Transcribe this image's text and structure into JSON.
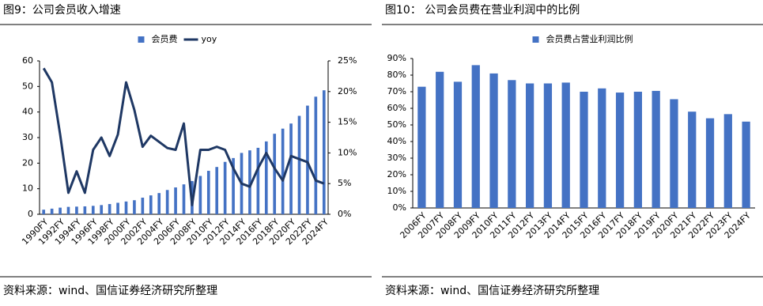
{
  "chart_data": [
    {
      "type": "combo",
      "title": "图9：公司会员收入增速",
      "source": "资料来源：wind、国信证券经济研究所整理",
      "legend": "top",
      "categories": [
        "1990FY",
        null,
        "1992FY",
        null,
        "1994FY",
        null,
        "1996FY",
        null,
        "1998FY",
        null,
        "2000FY",
        null,
        "2002FY",
        null,
        "2004FY",
        null,
        "2006FY",
        null,
        "2008FY",
        null,
        "2010FY",
        null,
        "2012FY",
        null,
        "2014FY",
        null,
        "2016FY",
        null,
        "2018FY",
        null,
        "2020FY",
        null,
        "2022FY",
        null,
        "2024FY"
      ],
      "series": [
        {
          "name": "会员费",
          "type": "bar",
          "color": "#4472c4",
          "values": [
            1.8,
            2.2,
            2.6,
            2.9,
            3.0,
            3.1,
            3.3,
            3.6,
            4.0,
            4.5,
            5.0,
            5.5,
            6.5,
            7.4,
            8.3,
            9.5,
            10.5,
            11.7,
            13.0,
            15.0,
            17.0,
            18.5,
            20.5,
            22.0,
            24.0,
            25.0,
            26.0,
            28.5,
            31.5,
            33.5,
            35.5,
            38.5,
            42.5,
            46.0,
            48.5
          ]
        },
        {
          "name": "yoy",
          "type": "line",
          "axis": "y2",
          "color": "#1f3864",
          "values": [
            23.8,
            21.5,
            13,
            3.5,
            7,
            3.5,
            10.5,
            12.5,
            9.5,
            13,
            21.5,
            17,
            11,
            12.8,
            11.8,
            10.8,
            10.5,
            14.8,
            1.5,
            10.5,
            10.5,
            11,
            10.5,
            7.5,
            5,
            4.5,
            7.5,
            10,
            7.5,
            5.5,
            9.5,
            9,
            8.5,
            5.5,
            5
          ]
        }
      ],
      "ylim": [
        0,
        60
      ],
      "yticks": [
        0,
        10,
        20,
        30,
        40,
        50,
        60
      ],
      "y2lim": [
        0,
        25
      ],
      "y2ticks": [
        {
          "value": 0,
          "label": "0%"
        },
        {
          "value": 5,
          "label": "5%"
        },
        {
          "value": 10,
          "label": "10%"
        },
        {
          "value": 15,
          "label": "15%"
        },
        {
          "value": 20,
          "label": "20%"
        },
        {
          "value": 25,
          "label": "25%"
        }
      ]
    },
    {
      "type": "bar",
      "title": "图10：  公司会员费在营业利润中的比例",
      "source": "资料来源：wind、国信证券经济研究所整理",
      "legend": "top",
      "categories": [
        "2006FY",
        "2007FY",
        "2008FY",
        "2009FY",
        "2010FY",
        "2011FY",
        "2012FY",
        "2013FY",
        "2014FY",
        "2015FY",
        "2016FY",
        "2017FY",
        "2018FY",
        "2019FY",
        "2020FY",
        "2021FY",
        "2022FY",
        "2023FY",
        "2024FY"
      ],
      "series": [
        {
          "name": "会员费占营业利润比例",
          "type": "bar",
          "color": "#4472c4",
          "values": [
            73,
            82,
            76,
            86,
            81,
            77,
            75,
            75,
            75.5,
            70,
            72,
            69.5,
            70,
            70.5,
            65.5,
            58,
            54,
            56.5,
            52
          ]
        }
      ],
      "ylim": [
        0,
        90
      ],
      "yticks": [
        {
          "value": 0,
          "label": "0%"
        },
        {
          "value": 10,
          "label": "10%"
        },
        {
          "value": 20,
          "label": "20%"
        },
        {
          "value": 30,
          "label": "30%"
        },
        {
          "value": 40,
          "label": "40%"
        },
        {
          "value": 50,
          "label": "50%"
        },
        {
          "value": 60,
          "label": "60%"
        },
        {
          "value": 70,
          "label": "70%"
        },
        {
          "value": 80,
          "label": "80%"
        },
        {
          "value": 90,
          "label": "90%"
        }
      ]
    }
  ]
}
